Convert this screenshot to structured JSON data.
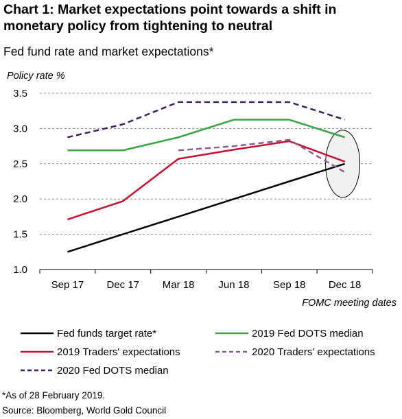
{
  "title": "Chart 1: Market expectations point towards a shift in monetary policy from tightening to neutral",
  "subtitle": "Fed fund rate and market expectations*",
  "footnote": "*As of 28 February 2019.",
  "source": "Source: Bloomberg, World Gold Council",
  "chart_data": {
    "type": "line",
    "ylabel": "Policy rate %",
    "xlabel": "FOMC meeting dates",
    "categories": [
      "Sep 17",
      "Dec 17",
      "Mar 18",
      "Jun 18",
      "Sep 18",
      "Dec 18"
    ],
    "ylim": [
      1.0,
      3.5
    ],
    "yticks": [
      "3.5",
      "3.0",
      "2.5",
      "2.0",
      "1.5",
      "1.0"
    ],
    "grid": true,
    "legend_position": "bottom",
    "series": [
      {
        "name": "Fed funds target rate*",
        "color": "#000000",
        "dash": "solid",
        "values": [
          1.25,
          1.5,
          1.75,
          2.0,
          2.25,
          2.5
        ]
      },
      {
        "name": "2019 Fed DOTS median",
        "color": "#3aa346",
        "dash": "solid",
        "values": [
          2.69,
          2.69,
          2.875,
          3.125,
          3.125,
          2.875
        ]
      },
      {
        "name": "2019 Traders' expectations",
        "color": "#c8102e",
        "dash": "solid",
        "values": [
          1.71,
          1.97,
          2.57,
          2.7,
          2.82,
          2.53
        ]
      },
      {
        "name": "2020 Traders' expectations",
        "color": "#8c5a94",
        "dash": "dashed",
        "values": [
          null,
          null,
          2.69,
          2.75,
          2.84,
          2.38
        ]
      },
      {
        "name": "2020 Fed DOTS median",
        "color": "#3c2161",
        "dash": "dashed",
        "values": [
          2.875,
          3.06,
          3.375,
          3.375,
          3.375,
          3.125
        ]
      }
    ],
    "annotation": {
      "shape": "ellipse",
      "category": "Dec 18",
      "center_y": 2.5
    }
  }
}
